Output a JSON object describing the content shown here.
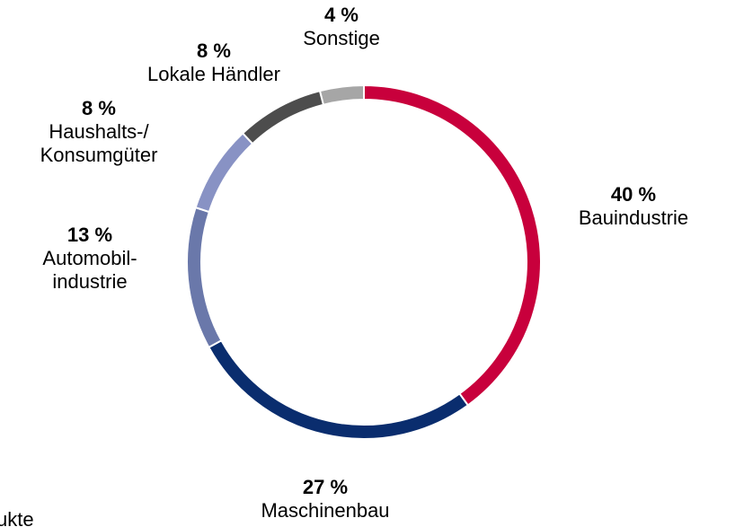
{
  "chart_data": {
    "type": "donut",
    "categories": [
      "Bauindustrie",
      "Maschinenbau",
      "Automobil-\nindustrie",
      "Haushalts-/\nKonsumgüter",
      "Lokale Händler",
      "Sonstige"
    ],
    "values": [
      40,
      27,
      13,
      8,
      8,
      4
    ],
    "value_labels": [
      "40 %",
      "27 %",
      "13 %",
      "8 %",
      "8 %",
      "4 %"
    ],
    "colors": [
      "#c8003c",
      "#0a2d6e",
      "#6a78aa",
      "#8892c4",
      "#4d4d4d",
      "#a6a6a6"
    ],
    "note": "ukte"
  }
}
